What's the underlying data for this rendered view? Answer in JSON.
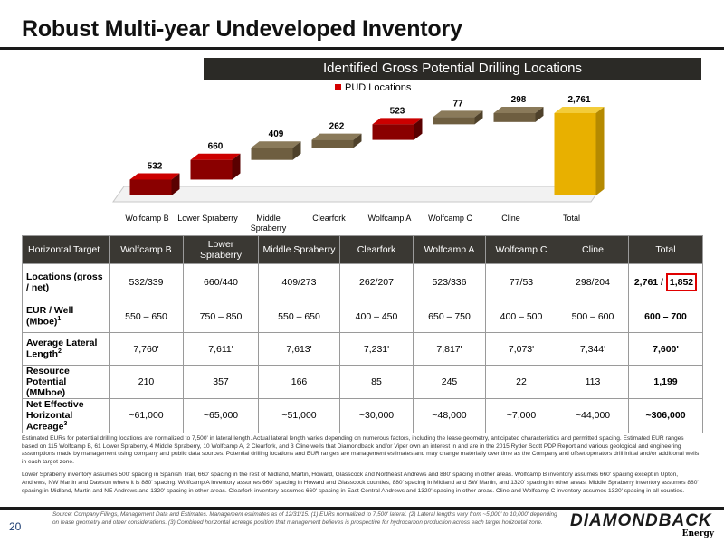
{
  "page": {
    "title": "Robust Multi-year Undeveloped Inventory",
    "banner": "Identified Gross Potential Drilling Locations",
    "page_number": "20",
    "logo_text": "DIAMONDBACK",
    "logo_sub": "Energy"
  },
  "chart_data": {
    "type": "bar",
    "subtype": "waterfall",
    "legend": [
      "PUD Locations"
    ],
    "categories": [
      "Wolfcamp B",
      "Lower Spraberry",
      "Middle Spraberry",
      "Clearfork",
      "Wolfcamp A",
      "Wolfcamp C",
      "Cline",
      "Total"
    ],
    "values": [
      532,
      660,
      409,
      262,
      523,
      77,
      298,
      2761
    ],
    "value_labels": [
      "532",
      "660",
      "409",
      "262",
      "523",
      "77",
      "298",
      "2,761"
    ],
    "pud_highlight": [
      true,
      true,
      false,
      false,
      true,
      false,
      false,
      false
    ],
    "colors": {
      "pud": "#cc0000",
      "segment": "#6e5e40",
      "total": "#e8b000",
      "legend": "#d40000"
    }
  },
  "table": {
    "headers": [
      "Horizontal Target",
      "Wolfcamp B",
      "Lower Spraberry",
      "Middle Spraberry",
      "Clearfork",
      "Wolfcamp A",
      "Wolfcamp C",
      "Cline",
      "Total"
    ],
    "rows": [
      {
        "label": "Locations (gross / net)",
        "sup": "",
        "cells": [
          "532/339",
          "660/440",
          "409/273",
          "262/207",
          "523/336",
          "77/53",
          "298/204"
        ],
        "total": "2,761 / 1,852"
      },
      {
        "label": "EUR / Well (Mboe)",
        "sup": "1",
        "cells": [
          "550 – 650",
          "750 – 850",
          "550 – 650",
          "400 – 450",
          "650 – 750",
          "400 – 500",
          "500 – 600"
        ],
        "total": "600 – 700"
      },
      {
        "label": "Average Lateral Length",
        "sup": "2",
        "cells": [
          "7,760'",
          "7,611'",
          "7,613'",
          "7,231'",
          "7,817'",
          "7,073'",
          "7,344'"
        ],
        "total": "7,600'"
      },
      {
        "label": "Resource Potential (MMboe)",
        "sup": "",
        "cells": [
          "210",
          "357",
          "166",
          "85",
          "245",
          "22",
          "113"
        ],
        "total": "1,199"
      },
      {
        "label": "Net Effective Horizontal Acreage",
        "sup": "3",
        "cells": [
          "~61,000",
          "~65,000",
          "~51,000",
          "~30,000",
          "~48,000",
          "~7,000",
          "~44,000"
        ],
        "total": "~306,000"
      }
    ]
  },
  "notes": {
    "p1": "Estimated EURs for potential drilling locations are normalized to 7,500' in lateral length. Actual lateral length varies depending on numerous factors, including the lease geometry, anticipated characteristics and permitted spacing. Estimated EUR ranges based on 115 Wolfcamp B, 61 Lower Spraberry, 4 Middle Spraberry, 10 Wolfcamp A, 2 Clearfork, and 3 Cline wells that Diamondback and/or Viper own an interest in and are in the 2015 Ryder Scott PDP Report and various geological and engineering assumptions made by management using company and public data sources. Potential drilling locations and EUR ranges are management estimates and may change materially over time as the Company and offset operators drill initial and/or additional wells in each target zone.",
    "p2": "Lower Spraberry inventory assumes 500' spacing in Spanish Trail, 660' spacing in the rest of Midland, Martin, Howard, Glasscock and Northeast Andrews and 880' spacing in other areas. Wolfcamp B inventory assumes 660' spacing except in Upton, Andrews, NW Martin and Dawson where it is 880' spacing. Wolfcamp A inventory assumes 660' spacing in Howard and Glasscock counties, 880' spacing in Midland and SW Martin, and 1320' spacing in other areas. Middle Spraberry inventory assumes 880' spacing in Midland, Martin and NE Andrews and 1320' spacing in other areas. Clearfork inventory assumes 660' spacing in East Central Andrews and 1320' spacing in other areas. Cline and Wolfcamp C inventory assumes 1320' spacing in all counties.",
    "source": "Source: Company Filings, Management Data and Estimates. Management estimates as of 12/31/15. (1) EURs normalized to 7,500' lateral. (2) Lateral lengths vary from ~5,000' to 10,000' depending on lease geometry and other considerations. (3) Combined horizontal acreage position that management believes is prospective for hydrocarbon production across each target horizontal zone."
  }
}
